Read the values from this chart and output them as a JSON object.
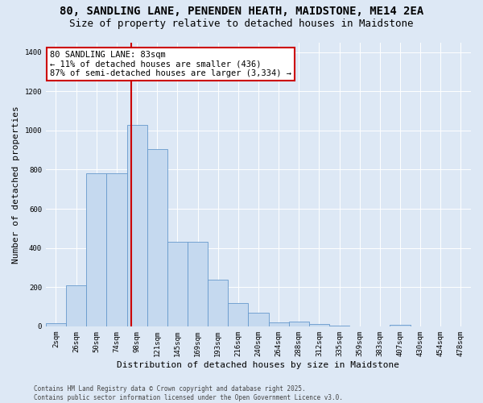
{
  "title_line1": "80, SANDLING LANE, PENENDEN HEATH, MAIDSTONE, ME14 2EA",
  "title_line2": "Size of property relative to detached houses in Maidstone",
  "xlabel": "Distribution of detached houses by size in Maidstone",
  "ylabel": "Number of detached properties",
  "bar_labels": [
    "2sqm",
    "26sqm",
    "50sqm",
    "74sqm",
    "98sqm",
    "121sqm",
    "145sqm",
    "169sqm",
    "193sqm",
    "216sqm",
    "240sqm",
    "264sqm",
    "288sqm",
    "312sqm",
    "335sqm",
    "359sqm",
    "383sqm",
    "407sqm",
    "430sqm",
    "454sqm",
    "478sqm"
  ],
  "bar_values": [
    15,
    210,
    780,
    780,
    1030,
    905,
    430,
    430,
    240,
    120,
    70,
    20,
    22,
    12,
    5,
    0,
    0,
    8,
    0,
    0,
    0
  ],
  "bar_color": "#c5d9ef",
  "bar_edgecolor": "#6699cc",
  "vline_x_index": 3.72,
  "vline_color": "#cc0000",
  "annotation_text": "80 SANDLING LANE: 83sqm\n← 11% of detached houses are smaller (436)\n87% of semi-detached houses are larger (3,334) →",
  "annotation_box_facecolor": "#ffffff",
  "annotation_box_edgecolor": "#cc0000",
  "ylim": [
    0,
    1450
  ],
  "yticks": [
    0,
    200,
    400,
    600,
    800,
    1000,
    1200,
    1400
  ],
  "bg_color": "#dde8f5",
  "footer_text": "Contains HM Land Registry data © Crown copyright and database right 2025.\nContains public sector information licensed under the Open Government Licence v3.0.",
  "title_fontsize": 10,
  "subtitle_fontsize": 9,
  "tick_fontsize": 6.5,
  "label_fontsize": 8,
  "annot_fontsize": 7.5
}
